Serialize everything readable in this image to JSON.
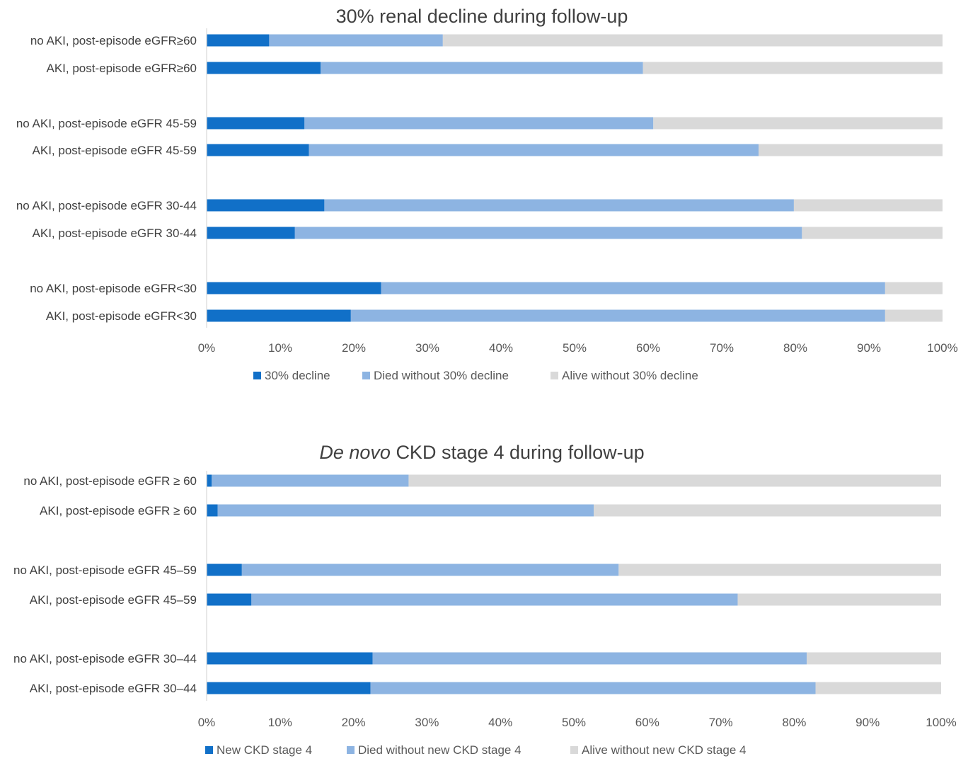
{
  "colors": {
    "dark": "#1170C8",
    "mid": "#8DB4E2",
    "light": "#D9D9D9",
    "axis": "#D9D9D9"
  },
  "chart_data": [
    {
      "type": "bar",
      "orientation": "horizontal",
      "stacked": true,
      "title": "30% renal decline during follow-up",
      "title_prefix_italic": "",
      "categories": [
        "no AKI, post-episode eGFR≥60",
        "AKI, post-episode eGFR≥60",
        "no AKI, post-episode eGFR 45-59",
        "AKI, post-episode eGFR 45-59",
        "no AKI, post-episode eGFR 30-44",
        "AKI, post-episode eGFR 30-44",
        "no AKI, post-episode eGFR<30",
        "AKI, post-episode eGFR<30"
      ],
      "series": [
        {
          "name": "30% decline",
          "values": [
            8.5,
            15.5,
            13.3,
            13.9,
            16.0,
            12.0,
            23.7,
            19.6
          ]
        },
        {
          "name": "Died without 30% decline",
          "values": [
            23.6,
            43.8,
            47.4,
            61.1,
            63.8,
            68.9,
            68.5,
            72.6
          ]
        },
        {
          "name": "Alive without 30% decline",
          "values": [
            67.9,
            40.7,
            39.3,
            25.0,
            20.2,
            19.1,
            7.8,
            7.8
          ]
        }
      ],
      "xlim": [
        0,
        100
      ],
      "xticks": [
        "0%",
        "10%",
        "20%",
        "30%",
        "40%",
        "50%",
        "60%",
        "70%",
        "80%",
        "90%",
        "100%"
      ],
      "legend": "bottom"
    },
    {
      "type": "bar",
      "orientation": "horizontal",
      "stacked": true,
      "title": "CKD stage 4 during follow-up",
      "title_prefix_italic": "De novo",
      "categories": [
        "no AKI, post-episode eGFR ≥ 60",
        "AKI, post-episode eGFR ≥ 60",
        "no AKI, post-episode eGFR 45–59",
        "AKI, post-episode eGFR 45–59",
        "no AKI, post-episode eGFR 30–44",
        "AKI, post-episode eGFR 30–44"
      ],
      "series": [
        {
          "name": "New CKD stage 4",
          "values": [
            0.7,
            1.5,
            4.8,
            6.1,
            22.6,
            22.3
          ]
        },
        {
          "name": "Died without new CKD stage  4",
          "values": [
            26.8,
            51.2,
            51.3,
            66.2,
            59.1,
            60.6
          ]
        },
        {
          "name": "Alive without new CKD stage 4",
          "values": [
            72.5,
            47.3,
            43.9,
            27.7,
            18.3,
            17.1
          ]
        }
      ],
      "xlim": [
        0,
        100
      ],
      "xticks": [
        "0%",
        "10%",
        "20%",
        "30%",
        "40%",
        "50%",
        "60%",
        "70%",
        "80%",
        "90%",
        "100%"
      ],
      "legend": "bottom"
    }
  ]
}
